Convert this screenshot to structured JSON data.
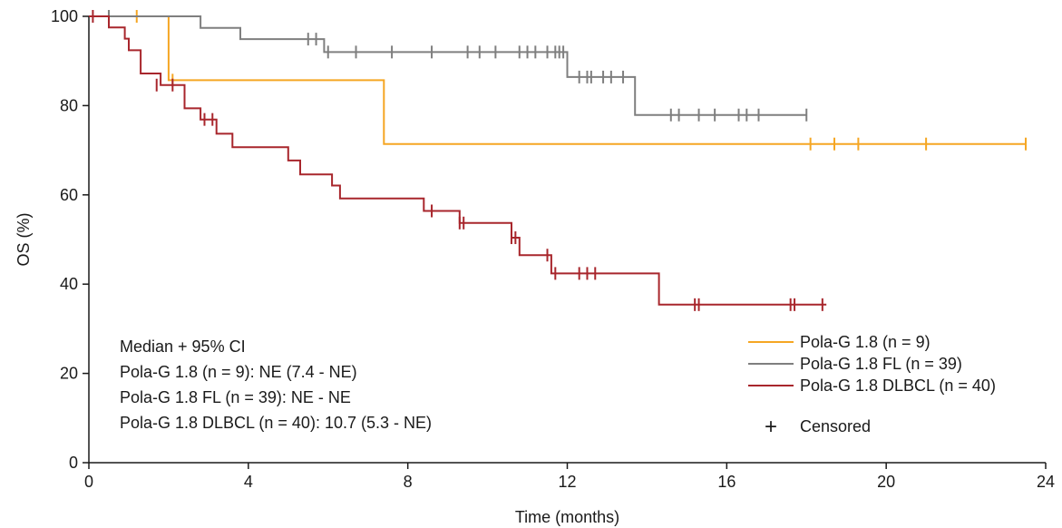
{
  "chart_data": {
    "type": "line",
    "subtype": "kaplan-meier step",
    "title": "",
    "xlabel": "Time (months)",
    "ylabel": "OS (%)",
    "xlim": [
      0,
      24
    ],
    "ylim": [
      0,
      100
    ],
    "xticks": [
      0,
      4,
      8,
      12,
      16,
      20,
      24
    ],
    "yticks": [
      0,
      20,
      40,
      60,
      80,
      100
    ],
    "xtick_labels": [
      "0",
      "4",
      "8",
      "12",
      "16",
      "20",
      "24"
    ],
    "ytick_labels": [
      "0",
      "20",
      "40",
      "60",
      "80",
      "100"
    ],
    "grid": false,
    "legend_position": "bottom-right",
    "annotation": {
      "lines": [
        "Median + 95% CI",
        "Pola-G 1.8 (n = 9): NE (7.4 - NE)",
        "Pola-G 1.8 FL (n = 39): NE - NE",
        "Pola-G 1.8 DLBCL (n = 40): 10.7 (5.3 - NE)"
      ]
    },
    "legend": {
      "censored_label": "Censored",
      "censored_symbol": "+"
    },
    "series": [
      {
        "name": "Pola-G 1.8 (n = 9)",
        "color": "#f5a623",
        "steps": [
          [
            0,
            100
          ],
          [
            2.0,
            85.7
          ],
          [
            7.4,
            71.4
          ]
        ],
        "end_x": 23.5,
        "censored": [
          [
            0.5,
            100
          ],
          [
            1.2,
            100
          ],
          [
            2.1,
            85.7
          ],
          [
            18.1,
            71.4
          ],
          [
            18.7,
            71.4
          ],
          [
            19.3,
            71.4
          ],
          [
            21.0,
            71.4
          ],
          [
            23.5,
            71.4
          ]
        ]
      },
      {
        "name": "Pola-G 1.8 FL (n = 39)",
        "color": "#7f7f7f",
        "steps": [
          [
            0,
            100
          ],
          [
            2.8,
            97.4
          ],
          [
            3.8,
            94.9
          ],
          [
            5.9,
            92.0
          ],
          [
            12.0,
            86.4
          ],
          [
            13.7,
            77.9
          ]
        ],
        "end_x": 18.0,
        "censored": [
          [
            0.5,
            100
          ],
          [
            5.5,
            94.9
          ],
          [
            5.7,
            94.9
          ],
          [
            6.0,
            92.0
          ],
          [
            6.7,
            92.0
          ],
          [
            7.6,
            92.0
          ],
          [
            8.6,
            92.0
          ],
          [
            9.5,
            92.0
          ],
          [
            9.8,
            92.0
          ],
          [
            10.2,
            92.0
          ],
          [
            10.8,
            92.0
          ],
          [
            11.0,
            92.0
          ],
          [
            11.2,
            92.0
          ],
          [
            11.5,
            92.0
          ],
          [
            11.7,
            92.0
          ],
          [
            11.8,
            92.0
          ],
          [
            11.9,
            92.0
          ],
          [
            12.3,
            86.4
          ],
          [
            12.5,
            86.4
          ],
          [
            12.6,
            86.4
          ],
          [
            12.9,
            86.4
          ],
          [
            13.1,
            86.4
          ],
          [
            13.4,
            86.4
          ],
          [
            14.6,
            77.9
          ],
          [
            14.8,
            77.9
          ],
          [
            15.3,
            77.9
          ],
          [
            15.7,
            77.9
          ],
          [
            16.3,
            77.9
          ],
          [
            16.5,
            77.9
          ],
          [
            16.8,
            77.9
          ],
          [
            18.0,
            77.9
          ]
        ]
      },
      {
        "name": "Pola-G 1.8 DLBCL (n = 40)",
        "color": "#a8262c",
        "steps": [
          [
            0,
            100
          ],
          [
            0.5,
            97.5
          ],
          [
            0.9,
            95.0
          ],
          [
            1.0,
            92.4
          ],
          [
            1.3,
            87.2
          ],
          [
            1.8,
            84.6
          ],
          [
            2.4,
            82.0
          ],
          [
            2.4,
            79.4
          ],
          [
            2.8,
            76.9
          ],
          [
            3.2,
            73.7
          ],
          [
            3.6,
            70.7
          ],
          [
            5.0,
            67.7
          ],
          [
            5.3,
            64.6
          ],
          [
            6.1,
            62.1
          ],
          [
            6.3,
            59.2
          ],
          [
            8.4,
            56.4
          ],
          [
            9.3,
            53.7
          ],
          [
            10.6,
            50.4
          ],
          [
            10.8,
            46.5
          ],
          [
            11.6,
            42.4
          ],
          [
            14.3,
            35.4
          ]
        ],
        "end_x": 18.5,
        "censored": [
          [
            0.1,
            100
          ],
          [
            1.7,
            84.6
          ],
          [
            2.1,
            84.6
          ],
          [
            2.9,
            76.9
          ],
          [
            3.1,
            76.9
          ],
          [
            8.6,
            56.4
          ],
          [
            9.3,
            53.7
          ],
          [
            9.4,
            53.7
          ],
          [
            10.6,
            50.4
          ],
          [
            10.7,
            50.4
          ],
          [
            11.5,
            46.5
          ],
          [
            11.7,
            42.4
          ],
          [
            12.3,
            42.4
          ],
          [
            12.5,
            42.4
          ],
          [
            12.7,
            42.4
          ],
          [
            15.2,
            35.4
          ],
          [
            15.3,
            35.4
          ],
          [
            17.6,
            35.4
          ],
          [
            17.7,
            35.4
          ],
          [
            18.4,
            35.4
          ]
        ]
      }
    ]
  }
}
